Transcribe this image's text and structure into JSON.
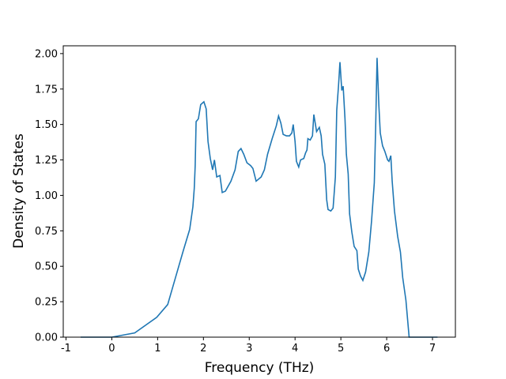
{
  "chart_data": {
    "type": "line",
    "xlabel": "Frequency (THz)",
    "ylabel": "Density of States",
    "xlim": [
      -1.06,
      7.5
    ],
    "ylim": [
      0,
      2.055
    ],
    "xticks": [
      -1,
      0,
      1,
      2,
      3,
      4,
      5,
      6,
      7
    ],
    "yticks": [
      {
        "value": 0,
        "label": "0.00"
      },
      {
        "value": 0.25,
        "label": "0.25"
      },
      {
        "value": 0.5,
        "label": "0.50"
      },
      {
        "value": 0.75,
        "label": "0.75"
      },
      {
        "value": 1,
        "label": "1.00"
      },
      {
        "value": 1.25,
        "label": "1.25"
      },
      {
        "value": 1.5,
        "label": "1.50"
      },
      {
        "value": 1.75,
        "label": "1.75"
      },
      {
        "value": 2,
        "label": "2.00"
      }
    ],
    "series": [
      {
        "color": "#1f77b4",
        "x": [
          -0.68,
          0,
          0.5,
          0.98,
          1.22,
          1.39,
          1.56,
          1.7,
          1.77,
          1.8,
          1.82,
          1.84,
          1.89,
          1.94,
          2.01,
          2.06,
          2.1,
          2.15,
          2.2,
          2.24,
          2.29,
          2.36,
          2.41,
          2.48,
          2.6,
          2.69,
          2.76,
          2.82,
          2.88,
          2.95,
          3.03,
          3.08,
          3.15,
          3.26,
          3.33,
          3.4,
          3.5,
          3.59,
          3.64,
          3.69,
          3.74,
          3.81,
          3.88,
          3.93,
          3.96,
          4.0,
          4.03,
          4.08,
          4.12,
          4.19,
          4.23,
          4.26,
          4.28,
          4.33,
          4.38,
          4.41,
          4.47,
          4.53,
          4.57,
          4.6,
          4.65,
          4.69,
          4.72,
          4.78,
          4.83,
          4.88,
          4.91,
          4.95,
          4.98,
          5.02,
          5.05,
          5.09,
          5.12,
          5.16,
          5.19,
          5.24,
          5.29,
          5.35,
          5.38,
          5.43,
          5.48,
          5.54,
          5.61,
          5.67,
          5.73,
          5.76,
          5.79,
          5.83,
          5.86,
          5.91,
          5.96,
          6.02,
          6.05,
          6.09,
          6.12,
          6.17,
          6.24,
          6.3,
          6.35,
          6.42,
          6.49,
          7.11
        ],
        "values": [
          0,
          0,
          0.03,
          0.14,
          0.23,
          0.42,
          0.61,
          0.76,
          0.92,
          1.05,
          1.21,
          1.52,
          1.54,
          1.64,
          1.66,
          1.61,
          1.38,
          1.26,
          1.18,
          1.25,
          1.13,
          1.14,
          1.02,
          1.03,
          1.1,
          1.18,
          1.31,
          1.33,
          1.29,
          1.23,
          1.21,
          1.19,
          1.1,
          1.13,
          1.18,
          1.29,
          1.4,
          1.49,
          1.56,
          1.51,
          1.43,
          1.42,
          1.42,
          1.44,
          1.5,
          1.38,
          1.24,
          1.2,
          1.25,
          1.26,
          1.3,
          1.32,
          1.4,
          1.39,
          1.42,
          1.57,
          1.45,
          1.48,
          1.42,
          1.29,
          1.22,
          0.97,
          0.9,
          0.89,
          0.91,
          1.13,
          1.6,
          1.78,
          1.94,
          1.74,
          1.77,
          1.54,
          1.29,
          1.15,
          0.87,
          0.74,
          0.64,
          0.61,
          0.48,
          0.43,
          0.4,
          0.46,
          0.6,
          0.82,
          1.09,
          1.49,
          1.97,
          1.63,
          1.44,
          1.35,
          1.31,
          1.25,
          1.24,
          1.28,
          1.1,
          0.89,
          0.71,
          0.6,
          0.42,
          0.26,
          0,
          0
        ]
      }
    ]
  }
}
